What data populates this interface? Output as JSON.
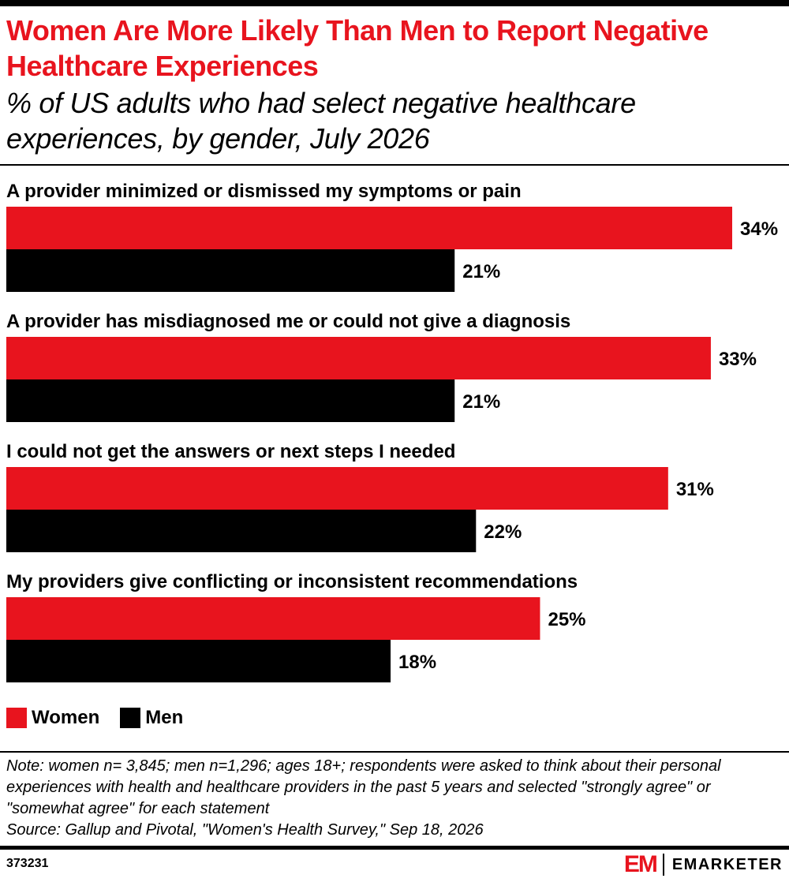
{
  "title": "Women Are More Likely Than Men to Report Negative Healthcare Experiences",
  "subtitle": "% of US adults who had select negative healthcare experiences, by gender, July 2026",
  "colors": {
    "women": "#e8141e",
    "men": "#000000",
    "accent": "#e8141e"
  },
  "chart_data": {
    "type": "bar",
    "orientation": "horizontal",
    "categories": [
      "A provider minimized or dismissed my symptoms or pain",
      "A provider has misdiagnosed me or could not give a diagnosis",
      "I could not get the answers or next steps I needed",
      "My providers give conflicting or inconsistent recommendations"
    ],
    "series": [
      {
        "name": "Women",
        "values": [
          34,
          33,
          31,
          25
        ],
        "color": "#e8141e"
      },
      {
        "name": "Men",
        "values": [
          21,
          21,
          22,
          18
        ],
        "color": "#000000"
      }
    ],
    "value_suffix": "%",
    "xlim": [
      0,
      34
    ],
    "grid": false,
    "legend": "bottom-left"
  },
  "legend": {
    "items": [
      {
        "label": "Women",
        "color": "#e8141e"
      },
      {
        "label": "Men",
        "color": "#000000"
      }
    ]
  },
  "note": "Note: women n= 3,845; men n=1,296; ages 18+; respondents were asked to think about their personal experiences with health and healthcare providers in the past 5 years and selected \"strongly agree\" or \"somewhat agree\" for each statement",
  "source": "Source: Gallup and Pivotal, \"Women's Health Survey,\" Sep 18, 2026",
  "footer": {
    "chart_id": "373231",
    "logo_mark": "EM",
    "logo_text": "EMARKETER"
  }
}
